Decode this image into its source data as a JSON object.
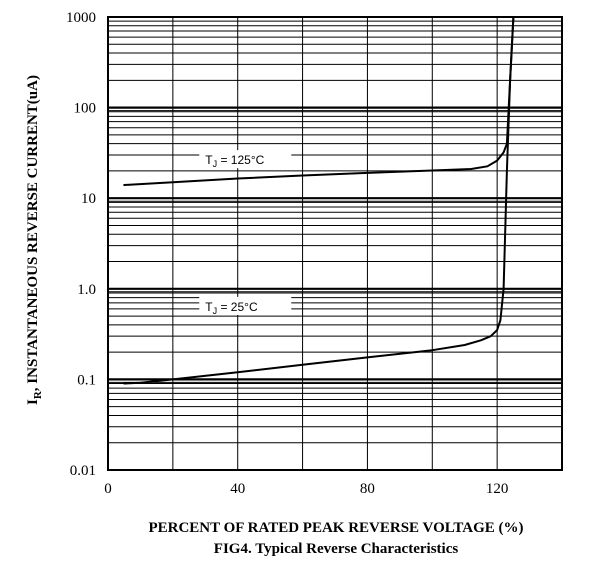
{
  "chart_data": {
    "type": "line",
    "xlabel": "PERCENT OF RATED PEAK REVERSE  VOLTAGE (%)",
    "ylabel": "INSTANTANEOUS REVERSE CURRENT(uA)",
    "ylabel_symbol": "I",
    "ylabel_subscript": "R",
    "ylabel_sep": ",",
    "caption": "FIG4. Typical Reverse   Characteristics",
    "xlim": [
      0,
      140
    ],
    "ylim": [
      0.01,
      1000
    ],
    "yscale": "log",
    "grid": true,
    "x_ticks": [
      {
        "value": 0,
        "label": "0"
      },
      {
        "value": 40,
        "label": "40"
      },
      {
        "value": 80,
        "label": "80"
      },
      {
        "value": 120,
        "label": "120"
      }
    ],
    "y_ticks": [
      {
        "value": 0.01,
        "label": "0.01"
      },
      {
        "value": 0.1,
        "label": "0.1"
      },
      {
        "value": 1,
        "label": "1.0"
      },
      {
        "value": 10,
        "label": "10"
      },
      {
        "value": 100,
        "label": "100"
      },
      {
        "value": 1000,
        "label": "1000"
      }
    ],
    "series": [
      {
        "name": "T",
        "name_sub": "J",
        "name_tail": " = 125°C",
        "label_at": {
          "x": 30,
          "y": 25
        },
        "points": [
          [
            5,
            14
          ],
          [
            20,
            15
          ],
          [
            40,
            16.5
          ],
          [
            60,
            17.8
          ],
          [
            80,
            19
          ],
          [
            100,
            20.2
          ],
          [
            112,
            21
          ],
          [
            117,
            22.5
          ],
          [
            120,
            26
          ],
          [
            122,
            32
          ],
          [
            123,
            40
          ],
          [
            124,
            200
          ],
          [
            125,
            1000
          ]
        ]
      },
      {
        "name": "T",
        "name_sub": "J",
        "name_tail": " = 25°C",
        "label_at": {
          "x": 30,
          "y": 0.6
        },
        "points": [
          [
            5,
            0.09
          ],
          [
            10,
            0.092
          ],
          [
            20,
            0.1
          ],
          [
            40,
            0.12
          ],
          [
            60,
            0.145
          ],
          [
            80,
            0.175
          ],
          [
            100,
            0.21
          ],
          [
            110,
            0.24
          ],
          [
            115,
            0.27
          ],
          [
            118,
            0.3
          ],
          [
            120,
            0.35
          ],
          [
            121,
            0.45
          ],
          [
            122,
            1
          ],
          [
            123,
            20
          ],
          [
            124,
            200
          ],
          [
            125,
            1000
          ]
        ]
      }
    ]
  }
}
